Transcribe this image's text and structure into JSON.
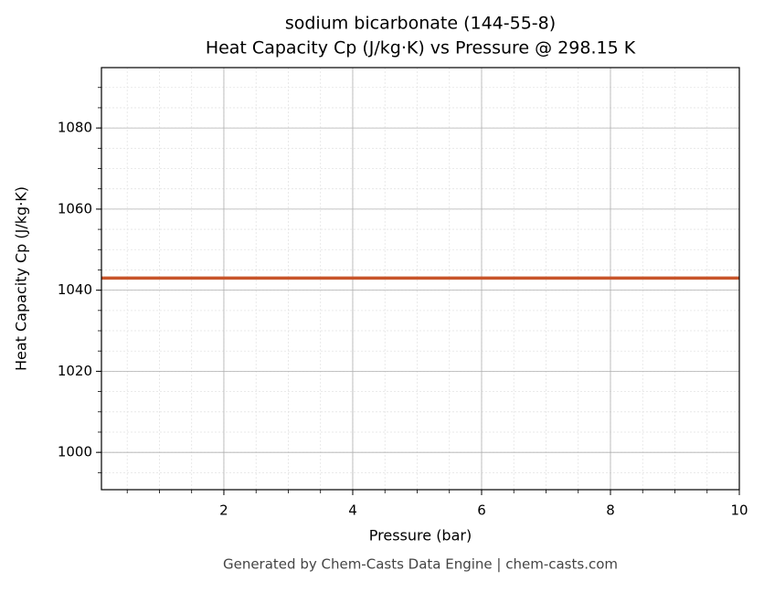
{
  "chart_data": {
    "type": "line",
    "title": "sodium bicarbonate (144-55-8)",
    "subtitle": "Heat Capacity Cp (J/kg·K) vs Pressure @ 298.15 K",
    "x_label": "Pressure (bar)",
    "y_label": "Heat Capacity Cp (J/kg·K)",
    "footer": "Generated by Chem-Casts Data Engine | chem-casts.com",
    "x": [
      0.1,
      1,
      2,
      3,
      4,
      5,
      6,
      7,
      8,
      9,
      10
    ],
    "series": [
      {
        "name": "Cp",
        "color": "#c8552a",
        "values": [
          1043,
          1043,
          1043,
          1043,
          1043,
          1043,
          1043,
          1043,
          1043,
          1043,
          1043
        ]
      }
    ],
    "xlim": [
      0.1,
      10
    ],
    "xticks": [
      2,
      4,
      6,
      8,
      10
    ],
    "ylim": [
      990.8,
      1094.9
    ],
    "yticks": [
      1000,
      1020,
      1040,
      1060,
      1080
    ],
    "grid": true,
    "minor_grid": true
  }
}
